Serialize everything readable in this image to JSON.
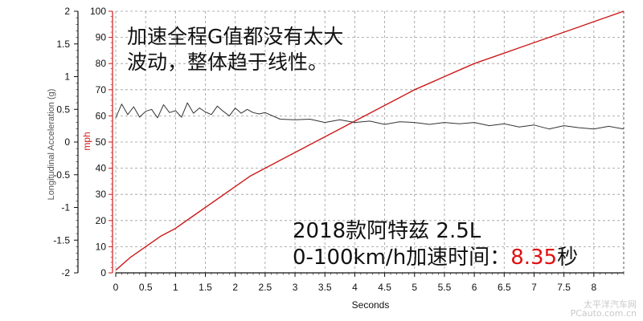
{
  "annotations": {
    "line1": "加速全程G值都没有太大",
    "line2": "波动，整体趋于线性。",
    "model": "2018款阿特兹 2.5L",
    "time_prefix": "0-100km/h加速时间：",
    "time_value": "8.35",
    "time_unit": "秒"
  },
  "watermark": {
    "line1": "太平洋汽车网",
    "line2": "PCauto.com.cn"
  },
  "colors": {
    "speed": "#cc1a1a",
    "accel": "#333333",
    "grid": "#9a9a9a",
    "left_axis": "#111111",
    "right_axis": "#d21a1a",
    "time_highlight": "#e01010"
  },
  "chart_data": {
    "type": "line",
    "xlabel": "Seconds",
    "ylabel_left": "Longitudinal Acceleration (g)",
    "ylabel_right": "mph",
    "xlim": [
      0,
      8.5
    ],
    "x_ticks": [
      "0",
      "0.5",
      "1",
      "1.5",
      "2",
      "2.5",
      "3",
      "3.5",
      "4",
      "4.5",
      "5",
      "5.5",
      "6",
      "6.5",
      "7",
      "7.5",
      "8"
    ],
    "ylim_left": [
      -2,
      2
    ],
    "left_ticks": [
      "2",
      "1.5",
      "1",
      "0.5",
      "0",
      "-0.5",
      "-1",
      "-1.5",
      "-2"
    ],
    "ylim_right": [
      0,
      100
    ],
    "right_ticks": [
      "100",
      "90",
      "80",
      "70",
      "60",
      "50",
      "40",
      "30",
      "20",
      "10",
      "0"
    ],
    "grid": true,
    "series": [
      {
        "name": "speed",
        "axis": "right",
        "x": [
          0,
          0.25,
          0.5,
          0.75,
          1,
          1.25,
          1.5,
          1.75,
          2,
          2.25,
          2.5,
          2.75,
          3,
          3.25,
          3.5,
          3.75,
          4,
          4.25,
          4.5,
          4.75,
          5,
          5.25,
          5.5,
          5.75,
          6,
          6.25,
          6.5,
          6.75,
          7,
          7.25,
          7.5,
          7.75,
          8,
          8.25,
          8.5
        ],
        "y": [
          1,
          6,
          10,
          14,
          17,
          21,
          25,
          29,
          33,
          37,
          40,
          43,
          46,
          49,
          52,
          55,
          58,
          61,
          64,
          67,
          70,
          72.5,
          75,
          77.5,
          80,
          82,
          84,
          86,
          88,
          90,
          92,
          94,
          96,
          98,
          100
        ]
      },
      {
        "name": "acceleration",
        "axis": "left",
        "x": [
          0,
          0.1,
          0.2,
          0.3,
          0.4,
          0.5,
          0.6,
          0.7,
          0.8,
          0.9,
          1,
          1.1,
          1.2,
          1.3,
          1.4,
          1.5,
          1.6,
          1.7,
          1.8,
          1.9,
          2,
          2.1,
          2.2,
          2.3,
          2.4,
          2.5,
          2.75,
          3,
          3.25,
          3.5,
          3.75,
          4,
          4.25,
          4.5,
          4.75,
          5,
          5.25,
          5.5,
          5.75,
          6,
          6.25,
          6.5,
          6.75,
          7,
          7.25,
          7.5,
          7.75,
          8,
          8.25,
          8.5
        ],
        "y": [
          0.37,
          0.58,
          0.42,
          0.54,
          0.38,
          0.47,
          0.5,
          0.37,
          0.57,
          0.45,
          0.48,
          0.38,
          0.6,
          0.44,
          0.52,
          0.46,
          0.42,
          0.55,
          0.47,
          0.4,
          0.52,
          0.44,
          0.5,
          0.45,
          0.43,
          0.45,
          0.35,
          0.34,
          0.35,
          0.3,
          0.34,
          0.3,
          0.32,
          0.27,
          0.31,
          0.3,
          0.27,
          0.3,
          0.28,
          0.3,
          0.25,
          0.28,
          0.23,
          0.26,
          0.2,
          0.25,
          0.22,
          0.2,
          0.24,
          0.2
        ]
      }
    ]
  }
}
